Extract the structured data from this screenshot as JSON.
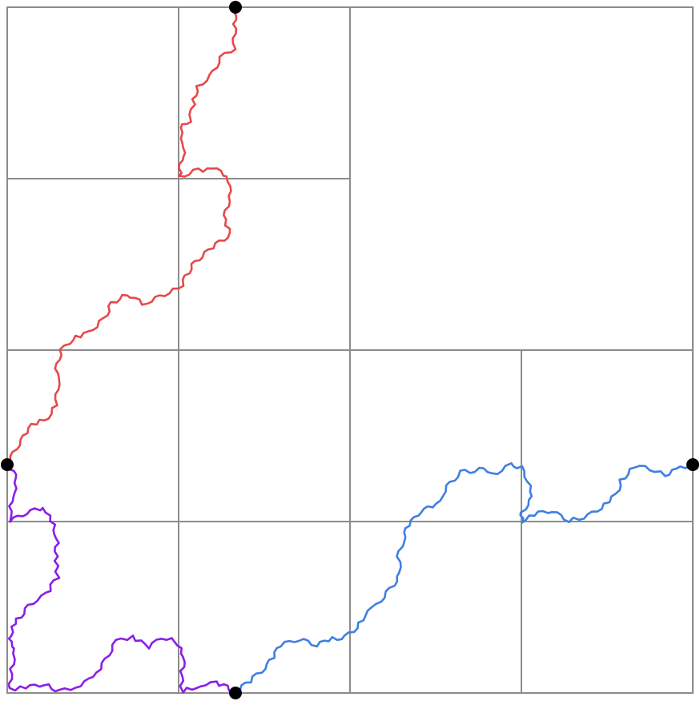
{
  "colors": {
    "background": "#ffffff",
    "grid": "#8c8c8c",
    "red_curve": "#e8484b",
    "purple_curve": "#8a1ee8",
    "blue_curve": "#3f7fe2",
    "endpoint": "#000000"
  },
  "diagram": {
    "kind": "fractal-curves-on-quadtree-grid",
    "quadtree_levels": 3,
    "curves": [
      {
        "id": "red",
        "color_key": "red_curve"
      },
      {
        "id": "purple",
        "color_key": "purple_curve"
      },
      {
        "id": "blue",
        "color_key": "blue_curve"
      }
    ],
    "endpoint_count": 4
  }
}
